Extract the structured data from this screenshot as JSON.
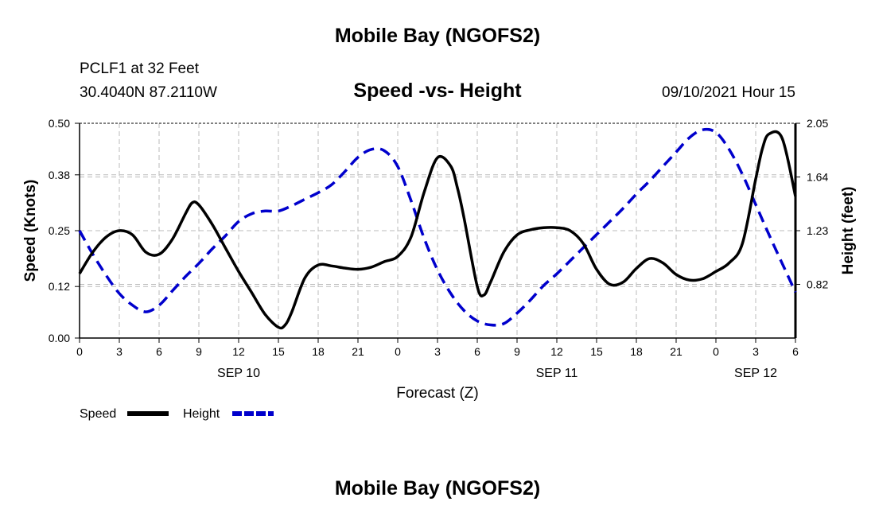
{
  "header": {
    "title": "Mobile Bay (NGOFS2)",
    "station": "PCLF1 at 32 Feet",
    "coords": "30.4040N  87.2110W",
    "subtitle": "Speed -vs- Height",
    "timestamp": "09/10/2021 Hour 15"
  },
  "footer": {
    "title": "Mobile Bay (NGOFS2)"
  },
  "legend": {
    "speed_label": "Speed",
    "height_label": "Height"
  },
  "colors": {
    "speed": "#000000",
    "height": "#0000cc",
    "grid": "#bbbbbb"
  },
  "chart_data": {
    "type": "line",
    "title": "Speed -vs- Height",
    "xlabel": "Forecast (Z)",
    "ylabel": "Speed (Knots)",
    "y2label": "Height (feet)",
    "x_ticks": [
      "0",
      "3",
      "6",
      "9",
      "12",
      "15",
      "18",
      "21",
      "0",
      "3",
      "6",
      "9",
      "12",
      "15",
      "18",
      "21",
      "0",
      "3",
      "6"
    ],
    "date_labels": [
      {
        "label": "SEP 10",
        "hour": 12
      },
      {
        "label": "SEP 11",
        "hour": 36
      },
      {
        "label": "SEP 12",
        "hour": 51
      }
    ],
    "xlim": [
      0,
      54
    ],
    "ylim": [
      0,
      0.5
    ],
    "y_ticks": [
      "0.00",
      "0.12",
      "0.25",
      "0.38",
      "0.50"
    ],
    "y2lim": [
      0.41,
      2.05
    ],
    "y2_ticks": [
      "0.82",
      "1.23",
      "1.64",
      "2.05"
    ],
    "grid": true,
    "series": [
      {
        "name": "Speed",
        "axis": "left",
        "style": "solid",
        "x": [
          0,
          1,
          2,
          3,
          4,
          5,
          6,
          7,
          8,
          8.5,
          9,
          10,
          11,
          12,
          13,
          14,
          15,
          15.5,
          16,
          17,
          18,
          19,
          20,
          21,
          22,
          23,
          24,
          25,
          26,
          27,
          28,
          28.5,
          29,
          30,
          30.5,
          31,
          32,
          33,
          34,
          35,
          36,
          37,
          38,
          39,
          40,
          41,
          42,
          43,
          44,
          45,
          46,
          47,
          48,
          49,
          50,
          51,
          51.5,
          52,
          53,
          54
        ],
        "values": [
          0.15,
          0.2,
          0.235,
          0.25,
          0.24,
          0.2,
          0.195,
          0.23,
          0.29,
          0.315,
          0.31,
          0.265,
          0.21,
          0.155,
          0.105,
          0.055,
          0.025,
          0.03,
          0.06,
          0.14,
          0.17,
          0.168,
          0.163,
          0.16,
          0.165,
          0.178,
          0.19,
          0.235,
          0.34,
          0.42,
          0.4,
          0.35,
          0.28,
          0.12,
          0.1,
          0.13,
          0.2,
          0.24,
          0.252,
          0.257,
          0.257,
          0.25,
          0.22,
          0.16,
          0.125,
          0.13,
          0.162,
          0.185,
          0.175,
          0.148,
          0.135,
          0.138,
          0.155,
          0.175,
          0.22,
          0.37,
          0.44,
          0.475,
          0.465,
          0.33
        ]
      },
      {
        "name": "Height",
        "axis": "right",
        "style": "dashed",
        "x": [
          0,
          1,
          2,
          3,
          4,
          5,
          6,
          7,
          8,
          9,
          10,
          11,
          12,
          13,
          14,
          15,
          16,
          17,
          18,
          19,
          20,
          21,
          22,
          23,
          24,
          25,
          26,
          27,
          28,
          29,
          30,
          31,
          32,
          33,
          34,
          35,
          36,
          37,
          38,
          39,
          40,
          41,
          42,
          43,
          44,
          45,
          46,
          47,
          48,
          49,
          50,
          51,
          52,
          53,
          54
        ],
        "values": [
          1.23,
          1.05,
          0.89,
          0.75,
          0.66,
          0.61,
          0.66,
          0.77,
          0.88,
          0.98,
          1.09,
          1.19,
          1.3,
          1.36,
          1.38,
          1.38,
          1.42,
          1.47,
          1.52,
          1.58,
          1.68,
          1.79,
          1.85,
          1.84,
          1.72,
          1.46,
          1.17,
          0.93,
          0.75,
          0.62,
          0.54,
          0.51,
          0.52,
          0.6,
          0.7,
          0.81,
          0.9,
          1.0,
          1.1,
          1.2,
          1.3,
          1.4,
          1.51,
          1.61,
          1.72,
          1.83,
          1.94,
          2.0,
          1.98,
          1.85,
          1.66,
          1.43,
          1.2,
          0.98,
          0.76
        ]
      }
    ]
  }
}
